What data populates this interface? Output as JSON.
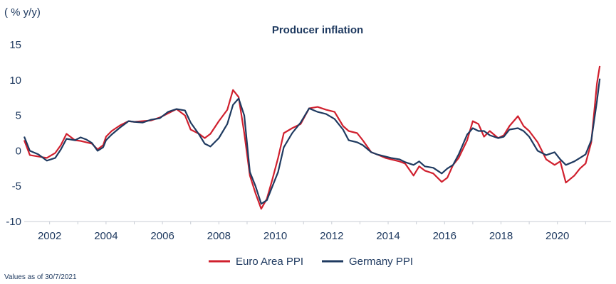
{
  "chart_data": {
    "type": "line",
    "title": "Producer inflation",
    "unit_label": "( % y/y)",
    "note": "Values as of 30/7/2021",
    "xlim": [
      2001.1,
      2021.9
    ],
    "ylim": [
      -10,
      15
    ],
    "y_ticks": [
      -10,
      -5,
      0,
      5,
      10,
      15
    ],
    "y_tick_labels": [
      "-10",
      "-5",
      "0",
      "5",
      "10",
      "15"
    ],
    "x_ticks": [
      2002,
      2004,
      2006,
      2008,
      2010,
      2012,
      2014,
      2016,
      2018,
      2020
    ],
    "x_tick_labels": [
      "2002",
      "2004",
      "2006",
      "2008",
      "2010",
      "2012",
      "2014",
      "2016",
      "2018",
      "2020"
    ],
    "grid": false,
    "legend_position": "bottom-center",
    "series": [
      {
        "name": "Euro Area PPI",
        "color": "#d0202e",
        "x": [
          2001.1,
          2001.3,
          2001.6,
          2001.9,
          2002.2,
          2002.4,
          2002.6,
          2002.9,
          2003.1,
          2003.3,
          2003.5,
          2003.7,
          2003.9,
          2004.0,
          2004.2,
          2004.5,
          2004.8,
          2005.0,
          2005.3,
          2005.6,
          2005.9,
          2006.2,
          2006.5,
          2006.8,
          2007.0,
          2007.3,
          2007.5,
          2007.7,
          2008.0,
          2008.3,
          2008.5,
          2008.7,
          2008.9,
          2009.1,
          2009.3,
          2009.5,
          2009.7,
          2009.9,
          2010.1,
          2010.3,
          2010.6,
          2010.9,
          2011.2,
          2011.5,
          2011.8,
          2012.1,
          2012.4,
          2012.6,
          2012.9,
          2013.1,
          2013.4,
          2013.6,
          2013.9,
          2014.1,
          2014.4,
          2014.6,
          2014.9,
          2015.1,
          2015.3,
          2015.6,
          2015.9,
          2016.1,
          2016.3,
          2016.5,
          2016.8,
          2017.0,
          2017.2,
          2017.4,
          2017.6,
          2017.9,
          2018.1,
          2018.3,
          2018.6,
          2018.8,
          2019.0,
          2019.3,
          2019.6,
          2019.9,
          2020.1,
          2020.3,
          2020.6,
          2020.8,
          2021.0,
          2021.2,
          2021.4,
          2021.5
        ],
        "values": [
          1.5,
          -0.6,
          -0.8,
          -1.0,
          -0.3,
          0.8,
          2.4,
          1.5,
          1.4,
          1.2,
          1.0,
          0.2,
          0.8,
          2.0,
          2.8,
          3.6,
          4.2,
          4.1,
          4.2,
          4.3,
          4.7,
          5.3,
          5.9,
          5.0,
          3.0,
          2.4,
          1.8,
          2.4,
          4.2,
          5.8,
          8.6,
          7.6,
          2.5,
          -3.5,
          -6.0,
          -8.2,
          -6.8,
          -4.0,
          -1.0,
          2.5,
          3.2,
          3.8,
          6.0,
          6.2,
          5.8,
          5.5,
          3.5,
          2.8,
          2.5,
          1.5,
          -0.2,
          -0.5,
          -1.0,
          -1.2,
          -1.5,
          -1.8,
          -3.5,
          -2.2,
          -2.8,
          -3.2,
          -4.4,
          -3.8,
          -2.0,
          -1.0,
          1.5,
          4.2,
          3.8,
          2.0,
          2.8,
          1.8,
          2.2,
          3.5,
          4.9,
          3.5,
          2.8,
          1.2,
          -1.2,
          -2.0,
          -1.5,
          -4.5,
          -3.5,
          -2.5,
          -1.8,
          1.2,
          9.5,
          12.0
        ]
      },
      {
        "name": "Germany PPI",
        "color": "#1f3a60",
        "x": [
          2001.1,
          2001.3,
          2001.6,
          2001.9,
          2002.2,
          2002.4,
          2002.6,
          2002.9,
          2003.1,
          2003.3,
          2003.5,
          2003.7,
          2003.9,
          2004.0,
          2004.2,
          2004.5,
          2004.8,
          2005.0,
          2005.3,
          2005.6,
          2005.9,
          2006.2,
          2006.5,
          2006.8,
          2007.0,
          2007.3,
          2007.5,
          2007.7,
          2008.0,
          2008.3,
          2008.5,
          2008.7,
          2008.9,
          2009.1,
          2009.3,
          2009.5,
          2009.7,
          2009.9,
          2010.1,
          2010.3,
          2010.6,
          2010.9,
          2011.2,
          2011.5,
          2011.8,
          2012.1,
          2012.4,
          2012.6,
          2012.9,
          2013.1,
          2013.4,
          2013.6,
          2013.9,
          2014.1,
          2014.4,
          2014.6,
          2014.9,
          2015.1,
          2015.3,
          2015.6,
          2015.9,
          2016.1,
          2016.3,
          2016.5,
          2016.8,
          2017.0,
          2017.2,
          2017.4,
          2017.6,
          2017.9,
          2018.1,
          2018.3,
          2018.6,
          2018.8,
          2019.0,
          2019.3,
          2019.6,
          2019.9,
          2020.1,
          2020.3,
          2020.6,
          2020.8,
          2021.0,
          2021.2,
          2021.4,
          2021.5
        ],
        "values": [
          2.0,
          0.0,
          -0.5,
          -1.4,
          -1.0,
          0.2,
          1.7,
          1.5,
          1.9,
          1.6,
          1.1,
          0.0,
          0.5,
          1.5,
          2.3,
          3.3,
          4.2,
          4.1,
          4.0,
          4.4,
          4.6,
          5.5,
          5.9,
          5.7,
          4.0,
          2.3,
          1.0,
          0.6,
          1.8,
          3.8,
          6.5,
          7.4,
          5.0,
          -3.0,
          -5.0,
          -7.5,
          -7.0,
          -5.0,
          -3.0,
          0.5,
          2.5,
          4.0,
          6.0,
          5.5,
          5.2,
          4.5,
          3.0,
          1.5,
          1.2,
          0.8,
          -0.2,
          -0.5,
          -0.8,
          -1.0,
          -1.2,
          -1.6,
          -2.0,
          -1.5,
          -2.2,
          -2.4,
          -3.2,
          -2.5,
          -2.0,
          -0.5,
          2.3,
          3.2,
          2.8,
          2.8,
          2.2,
          1.8,
          2.0,
          3.0,
          3.2,
          2.8,
          2.0,
          0.0,
          -0.6,
          -0.2,
          -1.2,
          -2.0,
          -1.5,
          -1.0,
          -0.5,
          1.5,
          7.0,
          10.2
        ]
      }
    ]
  }
}
